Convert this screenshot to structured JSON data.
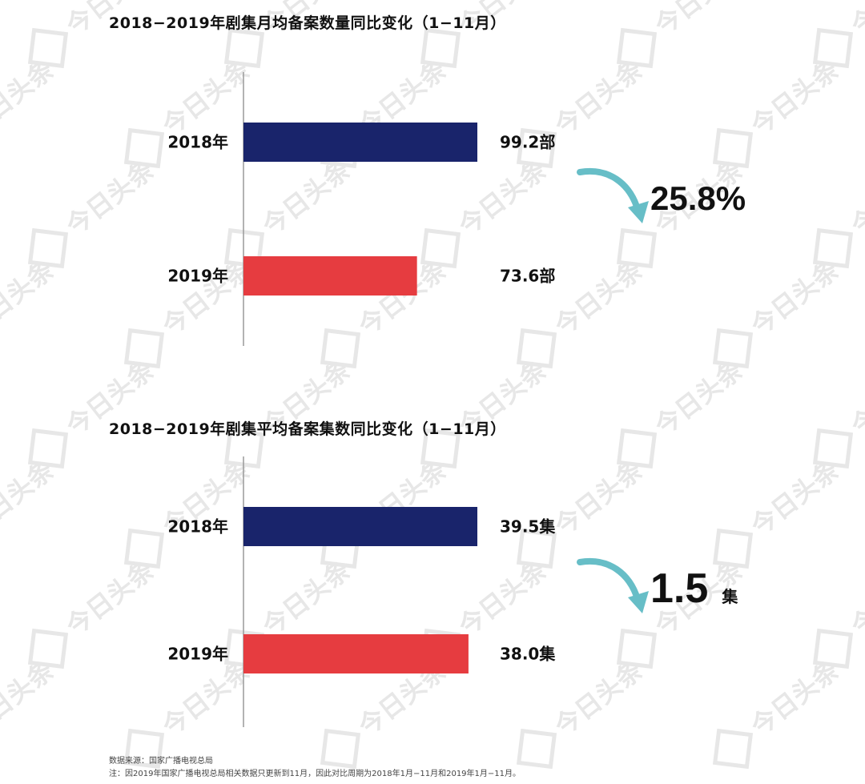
{
  "colors": {
    "series_2018": "#19246b",
    "series_2019": "#e63c40",
    "arrow": "#67bec7",
    "axis": "#9a9a9a",
    "watermark": "#e7e7e7"
  },
  "watermark_text": "今日头条",
  "chart_data": [
    {
      "type": "bar",
      "orientation": "horizontal",
      "title": "2018−2019年剧集月均备案数量同比变化（1−11月）",
      "categories": [
        "2018年",
        "2019年"
      ],
      "values": [
        99.2,
        73.6
      ],
      "value_labels": [
        "99.2部",
        "73.6部"
      ],
      "unit": "部",
      "change": {
        "value": "25.8%",
        "unit": "",
        "direction": "decrease",
        "arrow_icon": "curved-down-arrow-icon"
      },
      "xlim": [
        0,
        99.2
      ],
      "grid": false,
      "legend": "none"
    },
    {
      "type": "bar",
      "orientation": "horizontal",
      "title": "2018−2019年剧集平均备案集数同比变化（1−11月）",
      "categories": [
        "2018年",
        "2019年"
      ],
      "values": [
        39.5,
        38.0
      ],
      "value_labels": [
        "39.5集",
        "38.0集"
      ],
      "unit": "集",
      "change": {
        "value": "1.5",
        "unit": "集",
        "direction": "decrease",
        "arrow_icon": "curved-down-arrow-icon"
      },
      "grid": false,
      "legend": "none"
    }
  ],
  "footer": {
    "source": "数据来源：国家广播电视总局",
    "note": "注：因2019年国家广播电视总局相关数据只更新到11月，因此对比周期为2018年1月−11月和2019年1月−11月。"
  }
}
